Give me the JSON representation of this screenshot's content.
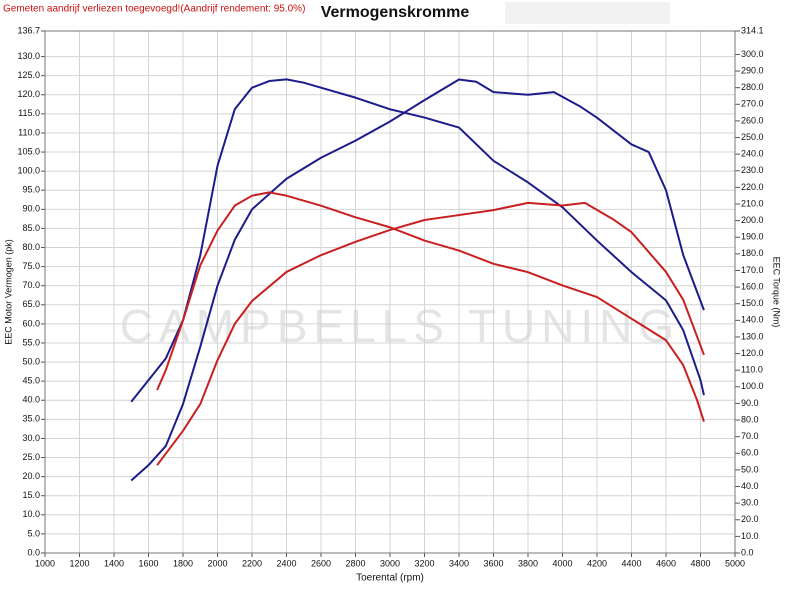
{
  "chart_data": {
    "type": "line",
    "title": "Vermogenskromme",
    "note": "Gemeten aandrijf verliezen toegevoegd!(Aandrijf rendement: 95.0%)",
    "watermark": "CAMPBELLS TUNING",
    "x_label": "Toerental (rpm)",
    "y_label": "EEC Motor Vermogen (pk)",
    "y2_label": "EEC Torque (Nm)",
    "grid": true,
    "xlim": [
      1000,
      5000
    ],
    "xticks": [
      1000,
      1200,
      1400,
      1600,
      1800,
      2000,
      2200,
      2400,
      2600,
      2800,
      3000,
      3200,
      3400,
      3600,
      3800,
      4000,
      4200,
      4400,
      4600,
      4800,
      5000
    ],
    "ylim": [
      0,
      136.7
    ],
    "yticks": [
      {
        "value": 0,
        "label": "0.0"
      },
      {
        "value": 5,
        "label": "5.0"
      },
      {
        "value": 10,
        "label": "10.0"
      },
      {
        "value": 15,
        "label": "15.0"
      },
      {
        "value": 20,
        "label": "20.0"
      },
      {
        "value": 25,
        "label": "25.0"
      },
      {
        "value": 30,
        "label": "30.0"
      },
      {
        "value": 35,
        "label": "35.0"
      },
      {
        "value": 40,
        "label": "40.0"
      },
      {
        "value": 45,
        "label": "45.0"
      },
      {
        "value": 50,
        "label": "50.0"
      },
      {
        "value": 55,
        "label": "55.0"
      },
      {
        "value": 60,
        "label": "60.0"
      },
      {
        "value": 65,
        "label": "65.0"
      },
      {
        "value": 70,
        "label": "70.0"
      },
      {
        "value": 75,
        "label": "75.0"
      },
      {
        "value": 80,
        "label": "80.0"
      },
      {
        "value": 85,
        "label": "85.0"
      },
      {
        "value": 90,
        "label": "90.0"
      },
      {
        "value": 95,
        "label": "95.0"
      },
      {
        "value": 100,
        "label": "100.0"
      },
      {
        "value": 105,
        "label": "105.0"
      },
      {
        "value": 110,
        "label": "110.0"
      },
      {
        "value": 115,
        "label": "115.0"
      },
      {
        "value": 120,
        "label": "120.0"
      },
      {
        "value": 125,
        "label": "125.0"
      },
      {
        "value": 130,
        "label": "130.0"
      },
      136.7
    ],
    "y2lim": [
      0,
      314.1
    ],
    "y2ticks": [
      {
        "value": 0,
        "label": "0.0"
      },
      {
        "value": 10,
        "label": "10.0"
      },
      {
        "value": 20,
        "label": "20.0"
      },
      {
        "value": 30,
        "label": "30.0"
      },
      {
        "value": 40,
        "label": "40.0"
      },
      {
        "value": 50,
        "label": "50.0"
      },
      {
        "value": 60,
        "label": "60.0"
      },
      {
        "value": 70,
        "label": "70.0"
      },
      {
        "value": 80,
        "label": "80.0"
      },
      {
        "value": 90,
        "label": "90.0"
      },
      {
        "value": 100,
        "label": "100.0"
      },
      {
        "value": 110,
        "label": "110.0"
      },
      {
        "value": 120,
        "label": "120.0"
      },
      {
        "value": 130,
        "label": "130.0"
      },
      {
        "value": 140,
        "label": "140.0"
      },
      {
        "value": 150,
        "label": "150.0"
      },
      {
        "value": 160,
        "label": "160.0"
      },
      {
        "value": 170,
        "label": "170.0"
      },
      {
        "value": 180,
        "label": "180.0"
      },
      {
        "value": 190,
        "label": "190.0"
      },
      {
        "value": 200,
        "label": "200.0"
      },
      {
        "value": 210,
        "label": "210.0"
      },
      {
        "value": 220,
        "label": "220.0"
      },
      {
        "value": 230,
        "label": "230.0"
      },
      {
        "value": 240,
        "label": "240.0"
      },
      {
        "value": 250,
        "label": "250.0"
      },
      {
        "value": 260,
        "label": "260.0"
      },
      {
        "value": 270,
        "label": "270.0"
      },
      {
        "value": 280,
        "label": "280.0"
      },
      {
        "value": 290,
        "label": "290.0"
      },
      {
        "value": 300,
        "label": "300.0"
      },
      314.1
    ],
    "series": [
      {
        "color": "#1c1c8a",
        "axis": "y2",
        "x": [
          1500,
          1700,
          1800,
          1900,
          2000,
          2100,
          2200,
          2300,
          2400,
          2500,
          2600,
          2800,
          3000,
          3200,
          3400,
          3600,
          3800,
          4000,
          4200,
          4400,
          4600,
          4700,
          4800,
          4820
        ],
        "values": [
          91,
          117,
          140,
          179,
          233,
          267,
          280,
          284,
          285,
          283,
          280,
          274,
          267,
          262,
          256,
          236,
          223,
          208,
          188,
          169,
          152,
          134,
          104,
          95
        ]
      },
      {
        "color": "#1c1c8a",
        "x": [
          1500,
          1600,
          1700,
          1800,
          1900,
          2000,
          2100,
          2200,
          2400,
          2600,
          2800,
          3000,
          3200,
          3400,
          3500,
          3600,
          3800,
          3950,
          4100,
          4200,
          4400,
          4500,
          4600,
          4700,
          4820
        ],
        "values": [
          19,
          23,
          28,
          39,
          54,
          70,
          82,
          90,
          98,
          103.5,
          108,
          113,
          118.6,
          124,
          123.4,
          120.7,
          120,
          120.7,
          117,
          114,
          107,
          105,
          95,
          78,
          63.6
        ]
      },
      {
        "color": "#c82020",
        "axis": "y2",
        "x": [
          1650,
          1700,
          1800,
          1900,
          2000,
          2100,
          2200,
          2300,
          2400,
          2600,
          2800,
          3000,
          3200,
          3400,
          3600,
          3800,
          4000,
          4200,
          4400,
          4600,
          4700,
          4780,
          4820
        ],
        "values": [
          98,
          110,
          140,
          173,
          194,
          209,
          215,
          217,
          215,
          209,
          202,
          196,
          188,
          182,
          174,
          169,
          161,
          154,
          141,
          128,
          113,
          92,
          79
        ]
      },
      {
        "color": "#c82020",
        "x": [
          1650,
          1800,
          1900,
          2000,
          2100,
          2200,
          2400,
          2600,
          2800,
          3000,
          3200,
          3400,
          3600,
          3800,
          4000,
          4130,
          4300,
          4400,
          4600,
          4700,
          4820
        ],
        "values": [
          23,
          32,
          39,
          50.5,
          60,
          66,
          73.6,
          78,
          81.5,
          84.6,
          87.2,
          88.5,
          89.8,
          91.7,
          91,
          91.7,
          87.2,
          84,
          73.6,
          66.3,
          51.9
        ]
      }
    ]
  }
}
